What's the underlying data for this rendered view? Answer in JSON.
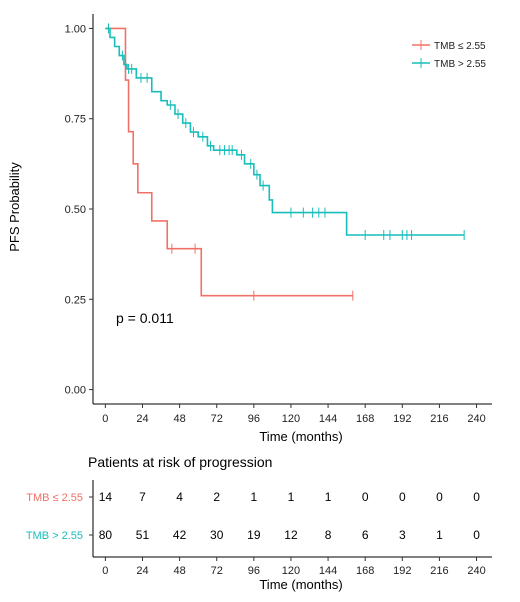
{
  "chart_data": {
    "type": "kaplan-meier",
    "xlabel": "Time (months)",
    "ylabel": "PFS  Probability",
    "xlim": [
      -8,
      250
    ],
    "ylim": [
      -0.04,
      1.04
    ],
    "x_ticks": [
      0,
      24,
      48,
      72,
      96,
      120,
      144,
      168,
      192,
      216,
      240
    ],
    "y_ticks": [
      0.0,
      0.25,
      0.5,
      0.75,
      1.0
    ],
    "y_tick_labels": [
      "0.00",
      "0.25",
      "0.50",
      "0.75",
      "1.00"
    ],
    "grid": false,
    "legend_position": "top-right",
    "annotation": "p = 0.011",
    "series": [
      {
        "name": "TMB ≤ 2.55",
        "color": "#F07167",
        "steps": [
          [
            0,
            1.0
          ],
          [
            13,
            0.857
          ],
          [
            15,
            0.714
          ],
          [
            18,
            0.625
          ],
          [
            21,
            0.545
          ],
          [
            30,
            0.467
          ],
          [
            40,
            0.39
          ],
          [
            62,
            0.26
          ],
          [
            160,
            0.26
          ]
        ],
        "censored": [
          [
            2,
            1.0
          ],
          [
            43,
            0.39
          ],
          [
            58,
            0.39
          ],
          [
            96,
            0.26
          ],
          [
            160,
            0.26
          ]
        ]
      },
      {
        "name": "TMB > 2.55",
        "color": "#17BEBB",
        "steps": [
          [
            0,
            1.0
          ],
          [
            3,
            0.975
          ],
          [
            6,
            0.95
          ],
          [
            9,
            0.925
          ],
          [
            12,
            0.9
          ],
          [
            14,
            0.888
          ],
          [
            20,
            0.863
          ],
          [
            30,
            0.825
          ],
          [
            36,
            0.8
          ],
          [
            40,
            0.788
          ],
          [
            45,
            0.763
          ],
          [
            50,
            0.738
          ],
          [
            55,
            0.713
          ],
          [
            60,
            0.7
          ],
          [
            66,
            0.675
          ],
          [
            70,
            0.663
          ],
          [
            85,
            0.65
          ],
          [
            90,
            0.625
          ],
          [
            96,
            0.595
          ],
          [
            100,
            0.565
          ],
          [
            106,
            0.525
          ],
          [
            108,
            0.49
          ],
          [
            156,
            0.428
          ],
          [
            232,
            0.428
          ]
        ],
        "censored": [
          [
            2,
            1.0
          ],
          [
            11,
            0.925
          ],
          [
            13,
            0.9
          ],
          [
            15,
            0.888
          ],
          [
            17,
            0.888
          ],
          [
            23,
            0.863
          ],
          [
            27,
            0.863
          ],
          [
            42,
            0.788
          ],
          [
            47,
            0.763
          ],
          [
            52,
            0.738
          ],
          [
            57,
            0.713
          ],
          [
            63,
            0.7
          ],
          [
            68,
            0.675
          ],
          [
            74,
            0.663
          ],
          [
            77,
            0.663
          ],
          [
            80,
            0.663
          ],
          [
            82,
            0.663
          ],
          [
            88,
            0.65
          ],
          [
            94,
            0.625
          ],
          [
            98,
            0.595
          ],
          [
            102,
            0.565
          ],
          [
            120,
            0.49
          ],
          [
            128,
            0.49
          ],
          [
            134,
            0.49
          ],
          [
            138,
            0.49
          ],
          [
            142,
            0.49
          ],
          [
            168,
            0.428
          ],
          [
            180,
            0.428
          ],
          [
            184,
            0.428
          ],
          [
            192,
            0.428
          ],
          [
            195,
            0.428
          ],
          [
            198,
            0.428
          ],
          [
            232,
            0.428
          ]
        ]
      }
    ]
  },
  "risk_table": {
    "title": "Patients at risk of progression",
    "xlabel": "Time (months)",
    "x": [
      0,
      24,
      48,
      72,
      96,
      120,
      144,
      168,
      192,
      216,
      240
    ],
    "rows": [
      {
        "label": "TMB ≤ 2.55",
        "color": "#F07167",
        "values": [
          "14",
          "7",
          "4",
          "2",
          "1",
          "1",
          "1",
          "0",
          "0",
          "0",
          "0"
        ]
      },
      {
        "label": "TMB > 2.55",
        "color": "#17BEBB",
        "values": [
          "80",
          "51",
          "42",
          "30",
          "19",
          "12",
          "8",
          "6",
          "3",
          "1",
          "0"
        ]
      }
    ]
  }
}
